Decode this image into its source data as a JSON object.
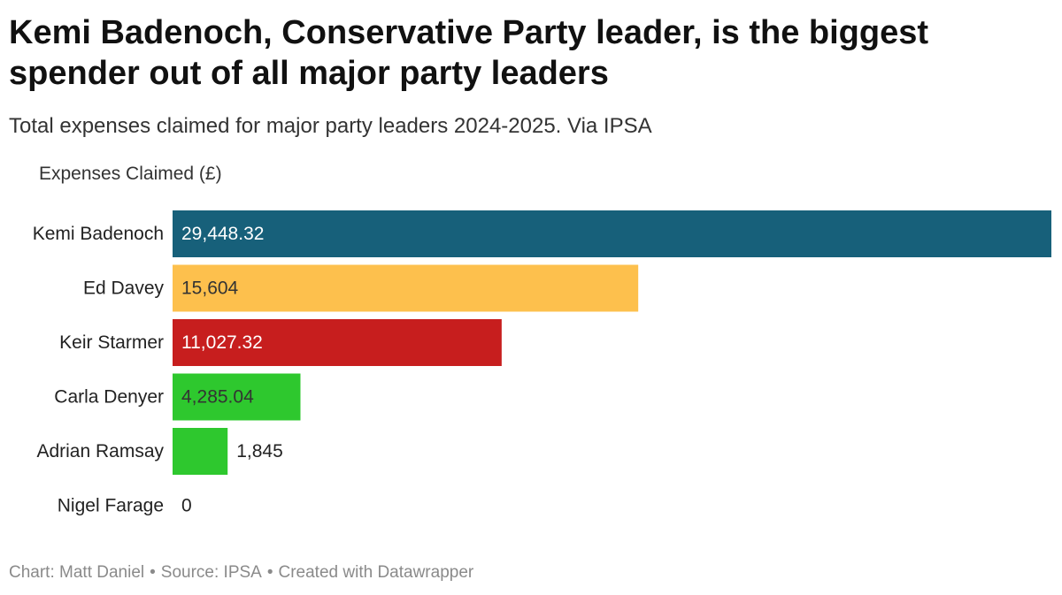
{
  "header": {
    "title": "Kemi Badenoch, Conservative Party leader, is the biggest spender out of all major party leaders",
    "subtitle": "Total expenses claimed for major party leaders 2024-2025. Via IPSA"
  },
  "footer": {
    "chart_credit": "Chart: Matt Daniel",
    "source": "Source: IPSA",
    "tool": "Created with Datawrapper",
    "separator": "•"
  },
  "chart_data": {
    "type": "bar",
    "orientation": "horizontal",
    "title": "Kemi Badenoch, Conservative Party leader, is the biggest spender out of all major party leaders",
    "subtitle": "Total expenses claimed for major party leaders 2024-2025. Via IPSA",
    "xlabel": "Expenses Claimed (£)",
    "ylabel": "",
    "xlim": [
      0,
      29448.32
    ],
    "grid": false,
    "categories": [
      "Kemi Badenoch",
      "Ed Davey",
      "Keir Starmer",
      "Carla Denyer",
      "Adrian Ramsay",
      "Nigel Farage"
    ],
    "values": [
      29448.32,
      15604,
      11027.32,
      4285.04,
      1845,
      0
    ],
    "value_labels": [
      "29,448.32",
      "15,604",
      "11,027.32",
      "4,285.04",
      "1,845",
      "0"
    ],
    "colors": [
      "#17607a",
      "#fdc04d",
      "#c71e1e",
      "#2ec82e",
      "#2ec82e",
      "#cccccc"
    ],
    "label_colors": [
      "#ffffff",
      "#333333",
      "#ffffff",
      "#333333",
      "#333333",
      "#333333"
    ]
  }
}
